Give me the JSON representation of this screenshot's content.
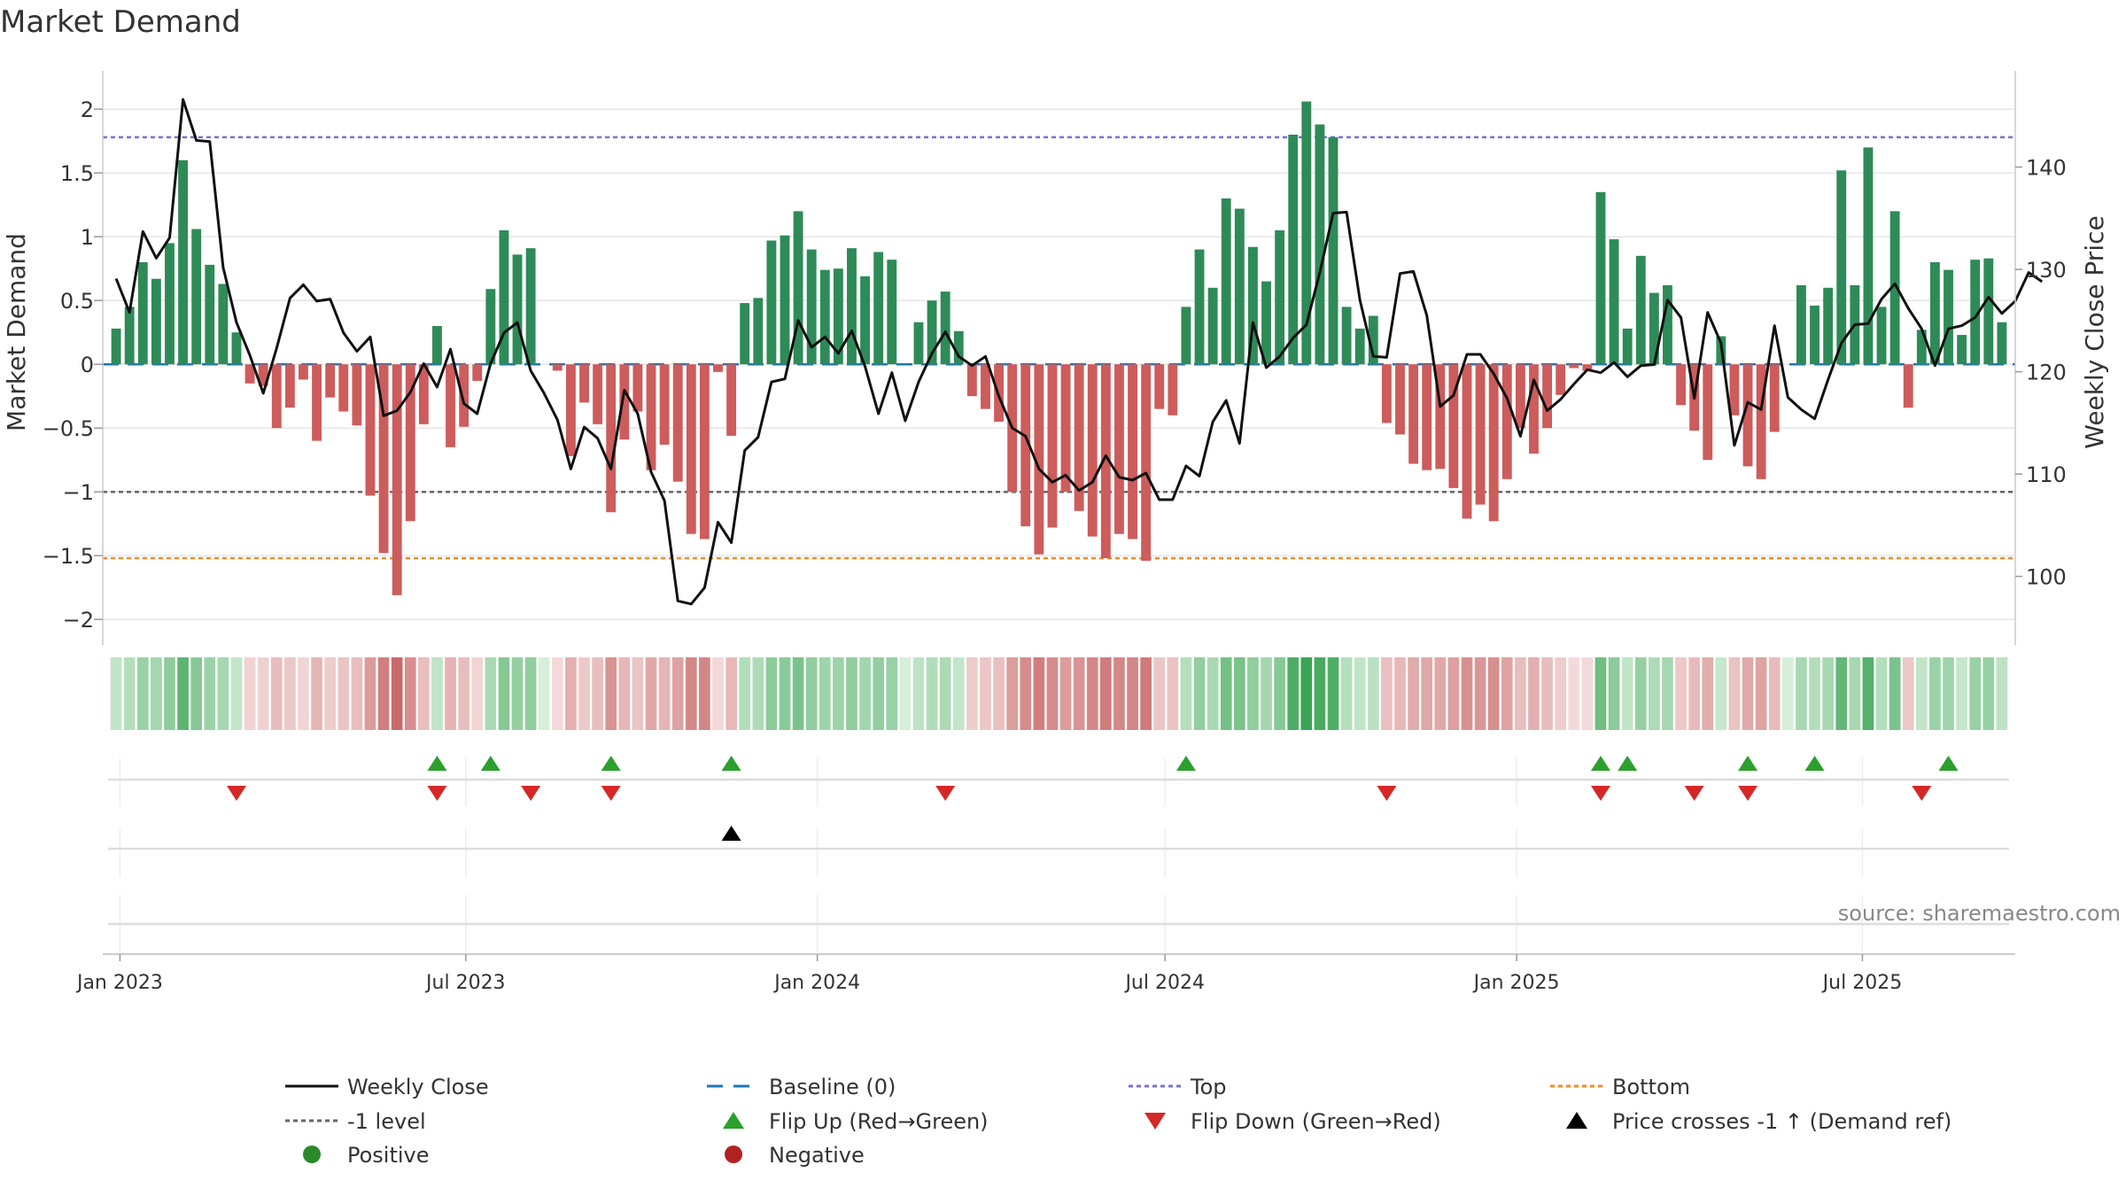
{
  "chart_data": {
    "type": "bar",
    "title": "Market Demand",
    "ylabel": "Market Demand",
    "y2label": "Weekly Close Price",
    "ylim": [
      -2.2,
      2.3
    ],
    "y2lim": [
      93.3,
      149.4
    ],
    "yticks": [
      2,
      1.5,
      1,
      0.5,
      0,
      -0.5,
      -1,
      -1.5,
      -2
    ],
    "ytick_labels": [
      "2",
      "1.5",
      "1",
      "0.5",
      "0",
      "−0.5",
      "−1",
      "−1.5",
      "−2"
    ],
    "y2ticks": [
      140,
      130,
      120,
      110,
      100
    ],
    "y2tick_labels": [
      "140",
      "130",
      "120",
      "110",
      "100"
    ],
    "x_start": "2022-12-23",
    "x_end": "2025-09-19",
    "week_start": "2022-12-30",
    "xticks": [
      {
        "date": "2023-01-01",
        "label": "Jan 2023"
      },
      {
        "date": "2023-07-01",
        "label": "Jul 2023"
      },
      {
        "date": "2024-01-01",
        "label": "Jan 2024"
      },
      {
        "date": "2024-07-01",
        "label": "Jul 2024"
      },
      {
        "date": "2025-01-01",
        "label": "Jan 2025"
      },
      {
        "date": "2025-07-01",
        "label": "Jul 2025"
      }
    ],
    "levels": {
      "top": 1.78,
      "minus_one": -1,
      "bottom": -1.52,
      "baseline": 0
    },
    "demand": [
      0.28,
      0.45,
      0.8,
      0.67,
      0.95,
      1.6,
      1.06,
      0.78,
      0.63,
      0.25,
      -0.15,
      -0.17,
      -0.5,
      -0.34,
      -0.12,
      -0.6,
      -0.26,
      -0.37,
      -0.48,
      -1.03,
      -1.48,
      -1.81,
      -1.23,
      -0.47,
      0.3,
      -0.65,
      -0.49,
      -0.13,
      0.59,
      1.05,
      0.86,
      0.91,
      0.0,
      -0.05,
      -0.72,
      -0.3,
      -0.47,
      -1.16,
      -0.59,
      -0.37,
      -0.83,
      -0.63,
      -0.92,
      -1.33,
      -1.37,
      -0.06,
      -0.56,
      0.48,
      0.52,
      0.97,
      1.01,
      1.2,
      0.9,
      0.74,
      0.75,
      0.91,
      0.69,
      0.88,
      0.82,
      0.0,
      0.33,
      0.5,
      0.57,
      0.26,
      -0.25,
      -0.35,
      -0.45,
      -1.0,
      -1.27,
      -1.49,
      -1.28,
      -1.0,
      -1.15,
      -1.35,
      -1.52,
      -1.33,
      -1.37,
      -1.54,
      -0.35,
      -0.4,
      0.45,
      0.9,
      0.6,
      1.3,
      1.22,
      0.92,
      0.65,
      1.05,
      1.8,
      2.06,
      1.88,
      1.78,
      0.45,
      0.28,
      0.38,
      -0.46,
      -0.55,
      -0.78,
      -0.83,
      -0.82,
      -0.97,
      -1.21,
      -1.1,
      -1.23,
      -0.9,
      -0.5,
      -0.7,
      -0.5,
      -0.24,
      -0.03,
      -0.05,
      1.35,
      0.98,
      0.28,
      0.85,
      0.56,
      0.62,
      -0.32,
      -0.52,
      -0.75,
      0.22,
      -0.4,
      -0.8,
      -0.9,
      -0.53,
      0.0,
      0.62,
      0.46,
      0.6,
      1.52,
      0.62,
      1.7,
      0.45,
      1.2,
      -0.34,
      0.27,
      0.8,
      0.74,
      0.23,
      0.82,
      0.83,
      0.33
    ],
    "price": [
      129.1,
      125.8,
      133.7,
      131.1,
      133.1,
      146.6,
      142.6,
      142.5,
      130.2,
      124.8,
      121.6,
      117.9,
      122.3,
      127.2,
      128.5,
      126.9,
      127.1,
      123.8,
      122.0,
      123.4,
      115.7,
      116.2,
      118.0,
      120.8,
      118.5,
      122.2,
      116.9,
      115.9,
      120.8,
      123.8,
      124.8,
      120.1,
      117.9,
      115.3,
      110.5,
      114.6,
      113.5,
      110.5,
      118.2,
      115.9,
      110.2,
      107.4,
      97.6,
      97.3,
      98.9,
      105.3,
      103.3,
      112.3,
      113.6,
      119.0,
      119.3,
      125.0,
      122.4,
      123.4,
      121.8,
      124.0,
      120.5,
      115.9,
      119.9,
      115.2,
      119.0,
      121.8,
      123.9,
      121.5,
      120.6,
      121.5,
      117.6,
      114.5,
      113.7,
      110.5,
      109.2,
      109.9,
      108.4,
      109.2,
      111.8,
      109.7,
      109.4,
      110.1,
      107.5,
      107.5,
      110.8,
      109.8,
      115.1,
      117.2,
      113.0,
      124.8,
      120.4,
      121.5,
      123.3,
      124.6,
      129.7,
      135.5,
      135.6,
      127.0,
      121.5,
      121.4,
      129.6,
      129.8,
      125.5,
      116.6,
      117.7,
      121.7,
      121.7,
      119.8,
      117.4,
      113.7,
      119.2,
      116.2,
      117.3,
      118.8,
      120.2,
      119.9,
      120.9,
      119.5,
      120.6,
      120.7,
      127.0,
      125.3,
      117.4,
      125.8,
      122.8,
      112.8,
      117.0,
      116.3,
      124.5,
      117.5,
      116.3,
      115.4,
      119.2,
      122.8,
      124.6,
      124.7,
      127.1,
      128.6,
      126.2,
      124.2,
      120.6,
      124.2,
      124.5,
      125.3,
      127.3,
      125.7,
      126.9,
      129.7,
      128.8
    ],
    "flip_up_weeks": [
      24,
      28,
      37,
      46,
      80,
      111,
      113,
      122,
      127,
      137
    ],
    "flip_down_weeks": [
      9,
      24,
      31,
      37,
      62,
      95,
      111,
      118,
      122,
      135
    ],
    "price_cross_weeks": [
      46
    ],
    "series": [
      {
        "name": "Weekly Close",
        "color": "#111111"
      },
      {
        "name": "Baseline (0)",
        "color": "#1f77b4"
      },
      {
        "name": "Top",
        "color": "#7570d6"
      },
      {
        "name": "Bottom",
        "color": "#f08a24"
      }
    ],
    "legend": [
      {
        "label": "Weekly Close",
        "icon": "solid-line",
        "color": "#111111"
      },
      {
        "label": "Baseline (0)",
        "icon": "dashed-line",
        "color": "#1f77b4"
      },
      {
        "label": "Top",
        "icon": "dotted-line",
        "color": "#7570d6"
      },
      {
        "label": "Bottom",
        "icon": "dotted-line",
        "color": "#f08a24"
      },
      {
        "label": "-1 level",
        "icon": "dotted-line",
        "color": "#666666"
      },
      {
        "label": "Flip Up (Red→Green)",
        "icon": "triangle-up",
        "color": "#2ca02c"
      },
      {
        "label": "Flip Down (Green→Red)",
        "icon": "triangle-down",
        "color": "#d62728"
      },
      {
        "label": "Price crosses -1 ↑ (Demand ref)",
        "icon": "triangle-up",
        "color": "#000000"
      },
      {
        "label": "Positive",
        "icon": "circle",
        "color": "#2a8a2a"
      },
      {
        "label": "Negative",
        "icon": "circle",
        "color": "#b22222"
      }
    ],
    "legend_placement": "bottom",
    "source": "source: sharemaestro.com",
    "colors": {
      "positive_bar": "#2e8b57",
      "negative_bar": "#cd5c5c",
      "flip_up": "#2ca02c",
      "flip_down": "#d62728",
      "price_cross": "#000000",
      "grid": "#e6e6e6"
    }
  }
}
